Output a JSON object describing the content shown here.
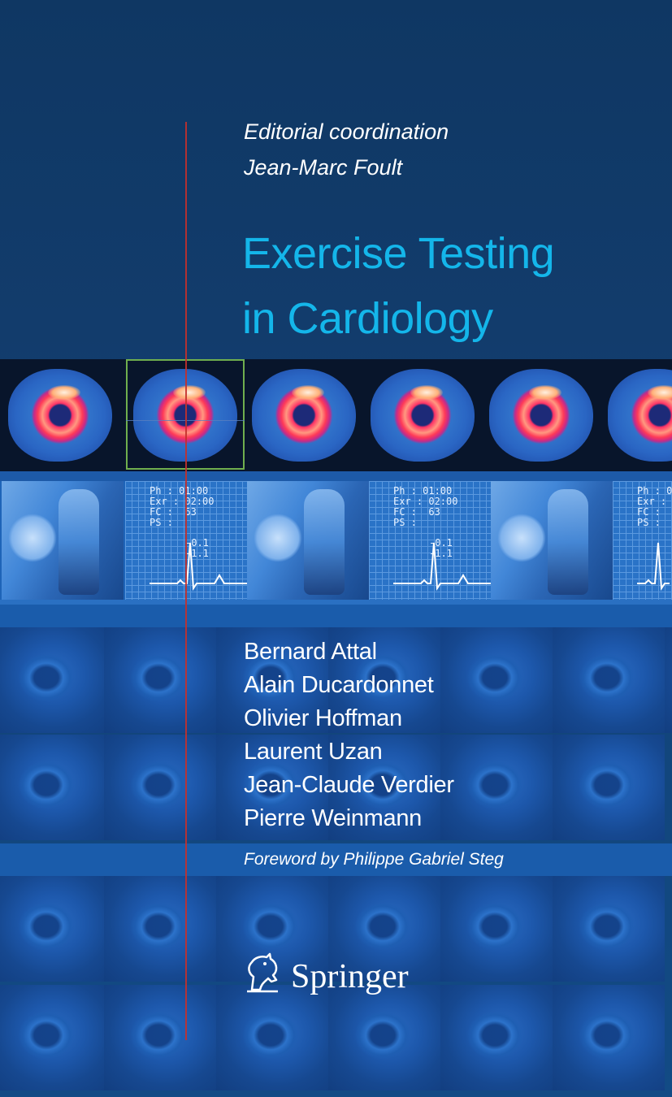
{
  "cover": {
    "editorial_line1": "Editorial coordination",
    "editorial_line2": "Jean-Marc Foult",
    "title_line1": "Exercise Testing",
    "title_line2": "in Cardiology",
    "authors": [
      "Bernard Attal",
      "Alain Ducardonnet",
      "Olivier Hoffman",
      "Laurent Uzan",
      "Jean-Claude Verdier",
      "Pierre Weinmann"
    ],
    "foreword": "Foreword by Philippe Gabriel Steg",
    "publisher": "Springer",
    "publisher_logo_icon": "horse-head-icon"
  },
  "ecg_readout": {
    "line1": "Ph : 01:00",
    "line2": "Exr : 02:00",
    "line3": "FC :  63",
    "line4": "PS :",
    "st1": "-0.1",
    "st2": "-1.1"
  },
  "colors": {
    "background": "#123a68",
    "title": "#14b6ea",
    "red_line": "#c4302b",
    "frame": "#6fae4e"
  }
}
